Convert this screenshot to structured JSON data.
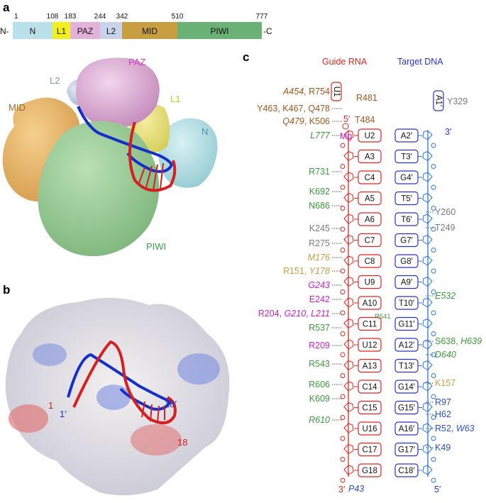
{
  "panels": {
    "a": "a",
    "b": "b",
    "c": "c"
  },
  "domain_bar": {
    "n_term": "N-",
    "c_term": "-C",
    "positions": [
      "1",
      "108",
      "183",
      "244",
      "342",
      "510",
      "777"
    ],
    "domains": [
      {
        "name": "N",
        "color": "#b9e1e9"
      },
      {
        "name": "L1",
        "color": "#f3ef1c"
      },
      {
        "name": "PAZ",
        "color": "#e3b1d9"
      },
      {
        "name": "L2",
        "color": "#c9d4ec"
      },
      {
        "name": "MID",
        "color": "#c99e42"
      },
      {
        "name": "PIWI",
        "color": "#6ab175"
      }
    ]
  },
  "panel_a": {
    "labels": [
      {
        "text": "PAZ",
        "color": "#d03fc3"
      },
      {
        "text": "L2",
        "color": "#8a93ad"
      },
      {
        "text": "MID",
        "color": "#9c6a28"
      },
      {
        "text": "L1",
        "color": "#c6c216"
      },
      {
        "text": "N",
        "color": "#3f9aa9"
      },
      {
        "text": "PIWI",
        "color": "#3d9a4d"
      }
    ]
  },
  "panel_b": {
    "labels": [
      {
        "text": "1",
        "color": "#cc1f1f"
      },
      {
        "text": "1′",
        "color": "#1f2fcc"
      },
      {
        "text": "18′",
        "color": "#1f2fcc"
      },
      {
        "text": "18",
        "color": "#cc1f1f"
      }
    ]
  },
  "panel_c": {
    "guide_title": "Guide RNA",
    "target_title": "Target DNA",
    "guide_color": "#e0261f",
    "target_color": "#2a33c9",
    "u1": "U1",
    "a1": "A1′",
    "guide_5prime": "5′",
    "target_3prime": "3′",
    "guide_3prime": "3′",
    "target_5prime": "5′",
    "mg": "Mg",
    "guide_nts": [
      "U2",
      "A3",
      "C4",
      "A5",
      "A6",
      "C7",
      "C8",
      "U9",
      "A10",
      "C11",
      "U12",
      "A13",
      "C14",
      "C15",
      "U16",
      "C17",
      "G18"
    ],
    "target_nts": [
      "A2′",
      "T3′",
      "G4′",
      "T5′",
      "T6′",
      "G7′",
      "G8′",
      "A9′",
      "T10′",
      "G11′",
      "A12′",
      "T13′",
      "G14′",
      "G15′",
      "A16′",
      "G17′",
      "C18′"
    ],
    "left_labels": [
      {
        "parts": [
          {
            "t": "A454",
            "c": "#a0571c",
            "i": true
          },
          {
            "t": ", R754",
            "c": "#a0571c",
            "i": false
          }
        ]
      },
      {
        "parts": [
          {
            "t": "Y463, K467, Q478",
            "c": "#a0571c",
            "i": false
          }
        ]
      },
      {
        "parts": [
          {
            "t": "Q479",
            "c": "#a0571c",
            "i": true
          },
          {
            "t": ", K506",
            "c": "#a0571c",
            "i": false
          }
        ]
      },
      {
        "parts": [
          {
            "t": "L777",
            "c": "#3c9a3c",
            "i": true
          }
        ]
      },
      {
        "parts": [
          {
            "t": "R731",
            "c": "#3c9a3c",
            "i": false
          }
        ]
      },
      {
        "parts": [
          {
            "t": "K692",
            "c": "#3c9a3c",
            "i": false
          }
        ]
      },
      {
        "parts": [
          {
            "t": "N686",
            "c": "#3c9a3c",
            "i": false
          }
        ]
      },
      {
        "parts": [
          {
            "t": "K245",
            "c": "#7b7b7b",
            "i": false
          }
        ]
      },
      {
        "parts": [
          {
            "t": "R275",
            "c": "#7b7b7b",
            "i": false
          }
        ]
      },
      {
        "parts": [
          {
            "t": "M176",
            "c": "#c99e42",
            "i": true
          }
        ]
      },
      {
        "parts": [
          {
            "t": "R151, ",
            "c": "#c99e42",
            "i": false
          },
          {
            "t": "Y178",
            "c": "#c99e42",
            "i": true
          }
        ]
      },
      {
        "parts": [
          {
            "t": "G243",
            "c": "#cc22cc",
            "i": true
          }
        ]
      },
      {
        "parts": [
          {
            "t": "E242",
            "c": "#cc22cc",
            "i": false
          }
        ]
      },
      {
        "parts": [
          {
            "t": "R204, ",
            "c": "#cc22cc",
            "i": false
          },
          {
            "t": "G210",
            "c": "#cc22cc",
            "i": true
          },
          {
            "t": ", ",
            "c": "#cc22cc",
            "i": false
          },
          {
            "t": "L211",
            "c": "#cc22cc",
            "i": true
          }
        ]
      },
      {
        "parts": [
          {
            "t": "R537",
            "c": "#3c9a3c",
            "i": false
          }
        ]
      },
      {
        "parts": [
          {
            "t": "R209",
            "c": "#cc22cc",
            "i": false
          }
        ]
      },
      {
        "parts": [
          {
            "t": "R543",
            "c": "#3c9a3c",
            "i": false
          }
        ]
      },
      {
        "parts": [
          {
            "t": "R606",
            "c": "#3c9a3c",
            "i": false
          }
        ]
      },
      {
        "parts": [
          {
            "t": "K609",
            "c": "#3c9a3c",
            "i": false
          }
        ]
      },
      {
        "parts": [
          {
            "t": "R610",
            "c": "#3c9a3c",
            "i": true
          }
        ]
      }
    ],
    "mid_labels": [
      {
        "parts": [
          {
            "t": "R481",
            "c": "#a0571c",
            "i": false
          }
        ]
      },
      {
        "parts": [
          {
            "t": "T484",
            "c": "#a0571c",
            "i": false
          }
        ]
      },
      {
        "parts": [
          {
            "t": "R541",
            "c": "#3c9a3c",
            "i": false
          }
        ]
      }
    ],
    "right_labels": [
      {
        "parts": [
          {
            "t": "Y329",
            "c": "#7b7b7b",
            "i": false
          }
        ]
      },
      {
        "parts": [
          {
            "t": "Y260",
            "c": "#7b7b7b",
            "i": false
          }
        ]
      },
      {
        "parts": [
          {
            "t": "T249",
            "c": "#7b7b7b",
            "i": false
          }
        ]
      },
      {
        "parts": [
          {
            "t": "E532",
            "c": "#3c9a3c",
            "i": true
          }
        ]
      },
      {
        "parts": [
          {
            "t": "S638, ",
            "c": "#3c9a3c",
            "i": false
          },
          {
            "t": "H639",
            "c": "#3c9a3c",
            "i": true
          }
        ]
      },
      {
        "parts": [
          {
            "t": "D640",
            "c": "#3c9a3c",
            "i": true
          }
        ]
      },
      {
        "parts": [
          {
            "t": "K157",
            "c": "#c99e42",
            "i": false
          }
        ]
      },
      {
        "parts": [
          {
            "t": "R97",
            "c": "#2a4fc9",
            "i": false
          }
        ]
      },
      {
        "parts": [
          {
            "t": "H62",
            "c": "#2a4fc9",
            "i": false
          }
        ]
      },
      {
        "parts": [
          {
            "t": "R52, ",
            "c": "#2a4fc9",
            "i": false
          },
          {
            "t": "W63",
            "c": "#2a4fc9",
            "i": true
          }
        ]
      },
      {
        "parts": [
          {
            "t": "K49",
            "c": "#2a4fc9",
            "i": false
          }
        ]
      },
      {
        "parts": [
          {
            "t": "P43",
            "c": "#2a4fc9",
            "i": true
          }
        ]
      }
    ]
  }
}
